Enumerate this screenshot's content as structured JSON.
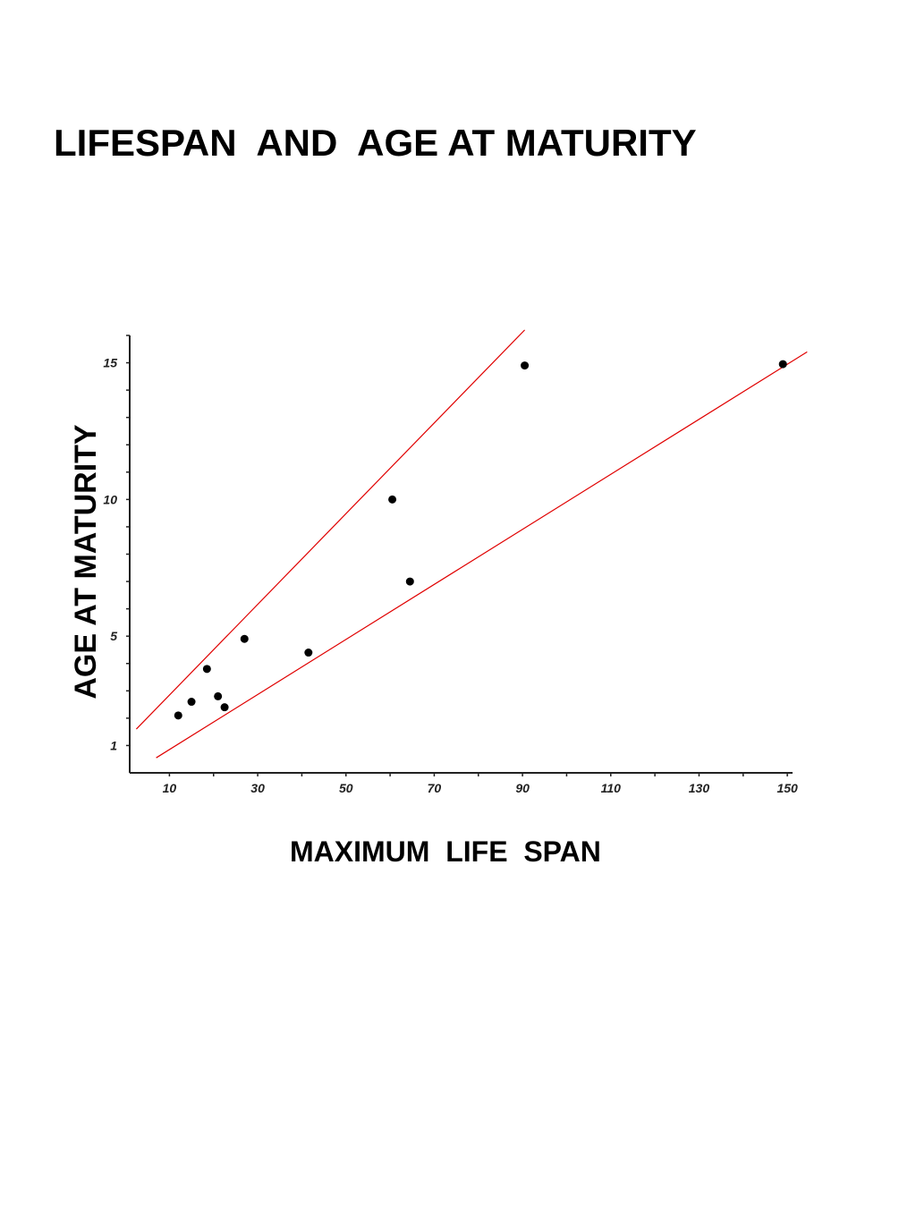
{
  "title": "LIFESPAN  AND  AGE AT MATURITY",
  "colors": {
    "axis": "#222222",
    "points": "#000000",
    "bound_lines": "#e00000"
  },
  "chart_data": {
    "type": "scatter",
    "title": "LIFESPAN  AND  AGE AT MATURITY",
    "xlabel": "MAXIMUM  LIFE  SPAN",
    "ylabel": "AGE AT MATURITY",
    "xlim": [
      1,
      152
    ],
    "ylim": [
      0,
      16
    ],
    "x_ticks": [
      10,
      30,
      50,
      70,
      90,
      110,
      130,
      150
    ],
    "y_ticks": [
      1,
      5,
      10,
      15
    ],
    "grid": false,
    "legend": "none",
    "series": [
      {
        "points": [
          {
            "x": 12,
            "y": 2.1
          },
          {
            "x": 15,
            "y": 2.6
          },
          {
            "x": 18.5,
            "y": 3.8
          },
          {
            "x": 21,
            "y": 2.8
          },
          {
            "x": 22.5,
            "y": 2.4
          },
          {
            "x": 27,
            "y": 4.9
          },
          {
            "x": 41.5,
            "y": 4.4
          },
          {
            "x": 60.5,
            "y": 10.0
          },
          {
            "x": 64.5,
            "y": 7.0
          },
          {
            "x": 90.5,
            "y": 14.9
          },
          {
            "x": 149,
            "y": 14.95
          }
        ]
      }
    ],
    "lines": [
      {
        "from": {
          "x": 2.5,
          "y": 1.6
        },
        "to": {
          "x": 90.5,
          "y": 16.2
        }
      },
      {
        "from": {
          "x": 7,
          "y": 0.55
        },
        "to": {
          "x": 154.5,
          "y": 15.4
        }
      }
    ]
  }
}
